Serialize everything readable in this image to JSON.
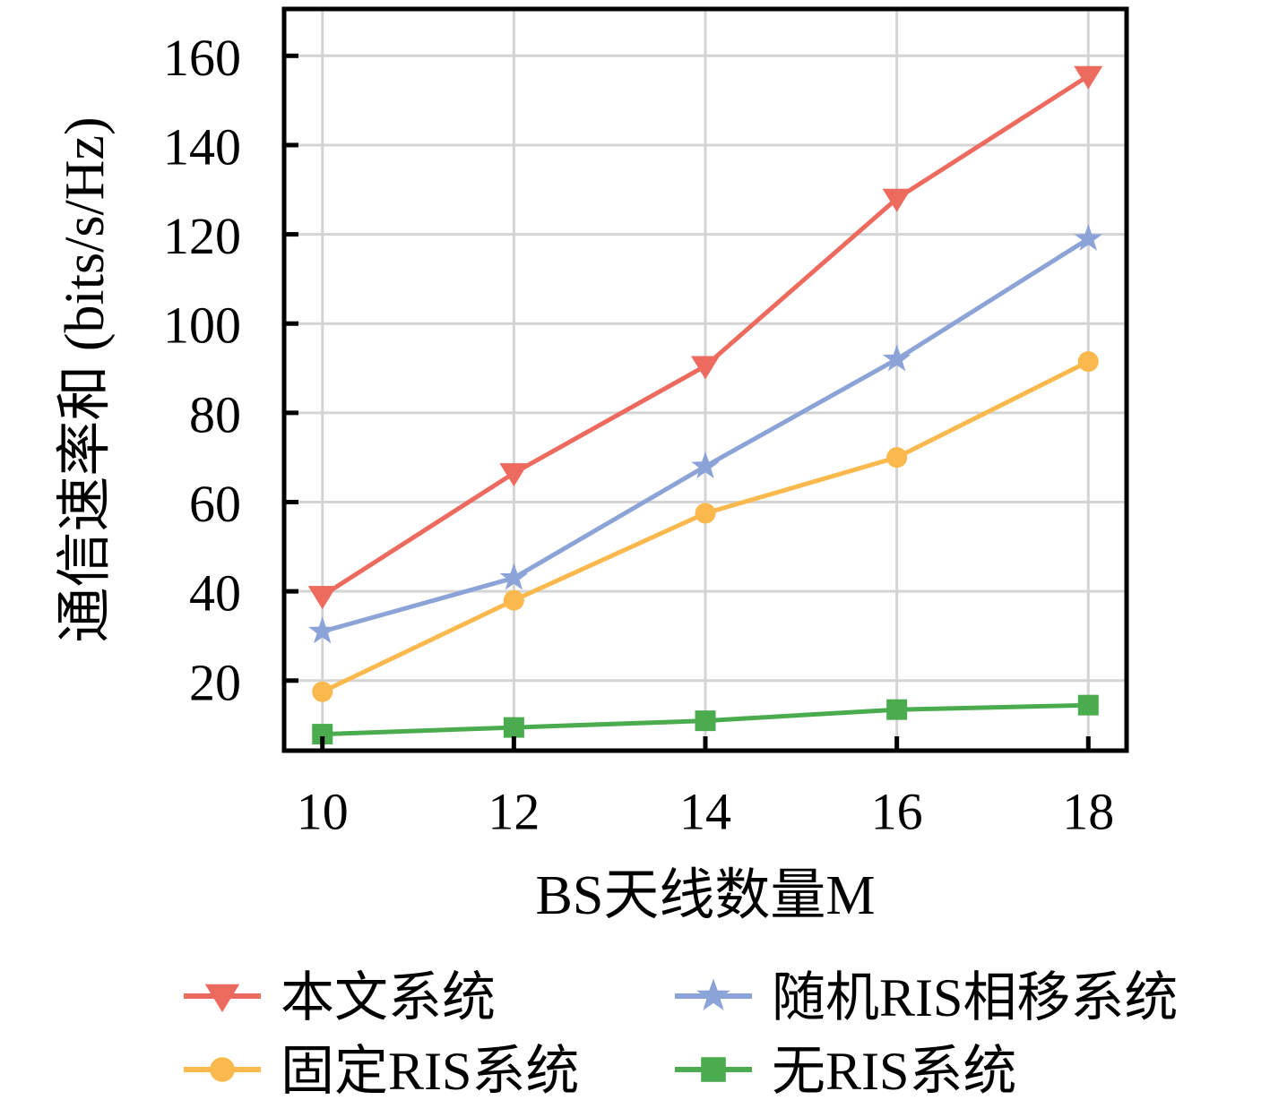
{
  "figure": {
    "background": "#ffffff",
    "grid_color": "#d4d4d4",
    "axis_color": "#000000"
  },
  "chart_data": {
    "type": "line",
    "title": "",
    "xlabel": "BS天线数量M",
    "ylabel": "通信速率和 (bits/s/Hz)",
    "x": [
      10,
      12,
      14,
      16,
      18
    ],
    "xticks": [
      10,
      12,
      14,
      16,
      18
    ],
    "yticks": [
      20,
      40,
      60,
      80,
      100,
      120,
      140,
      160
    ],
    "xlim": [
      9.6,
      18.4
    ],
    "ylim": [
      4.3,
      170.5
    ],
    "grid": true,
    "legend_position": "below-chart, 2 columns",
    "series": [
      {
        "name": "本文系统",
        "color": "#ED6A5F",
        "marker": "triangle-down",
        "values": [
          39,
          66.5,
          90.5,
          128,
          155.5
        ]
      },
      {
        "name": "固定RIS系统",
        "color": "#FAB84D",
        "marker": "circle",
        "values": [
          17.5,
          38,
          57.5,
          70,
          91.5
        ]
      },
      {
        "name": "随机RIS相移系统",
        "color": "#8CA3D7",
        "marker": "star",
        "values": [
          31,
          43,
          68,
          92,
          119
        ]
      },
      {
        "name": "无RIS系统",
        "color": "#4BAC4F",
        "marker": "square",
        "values": [
          8,
          9.5,
          11,
          13.5,
          14.5
        ]
      }
    ],
    "legend_columns": [
      [
        0,
        1
      ],
      [
        2,
        3
      ]
    ]
  }
}
